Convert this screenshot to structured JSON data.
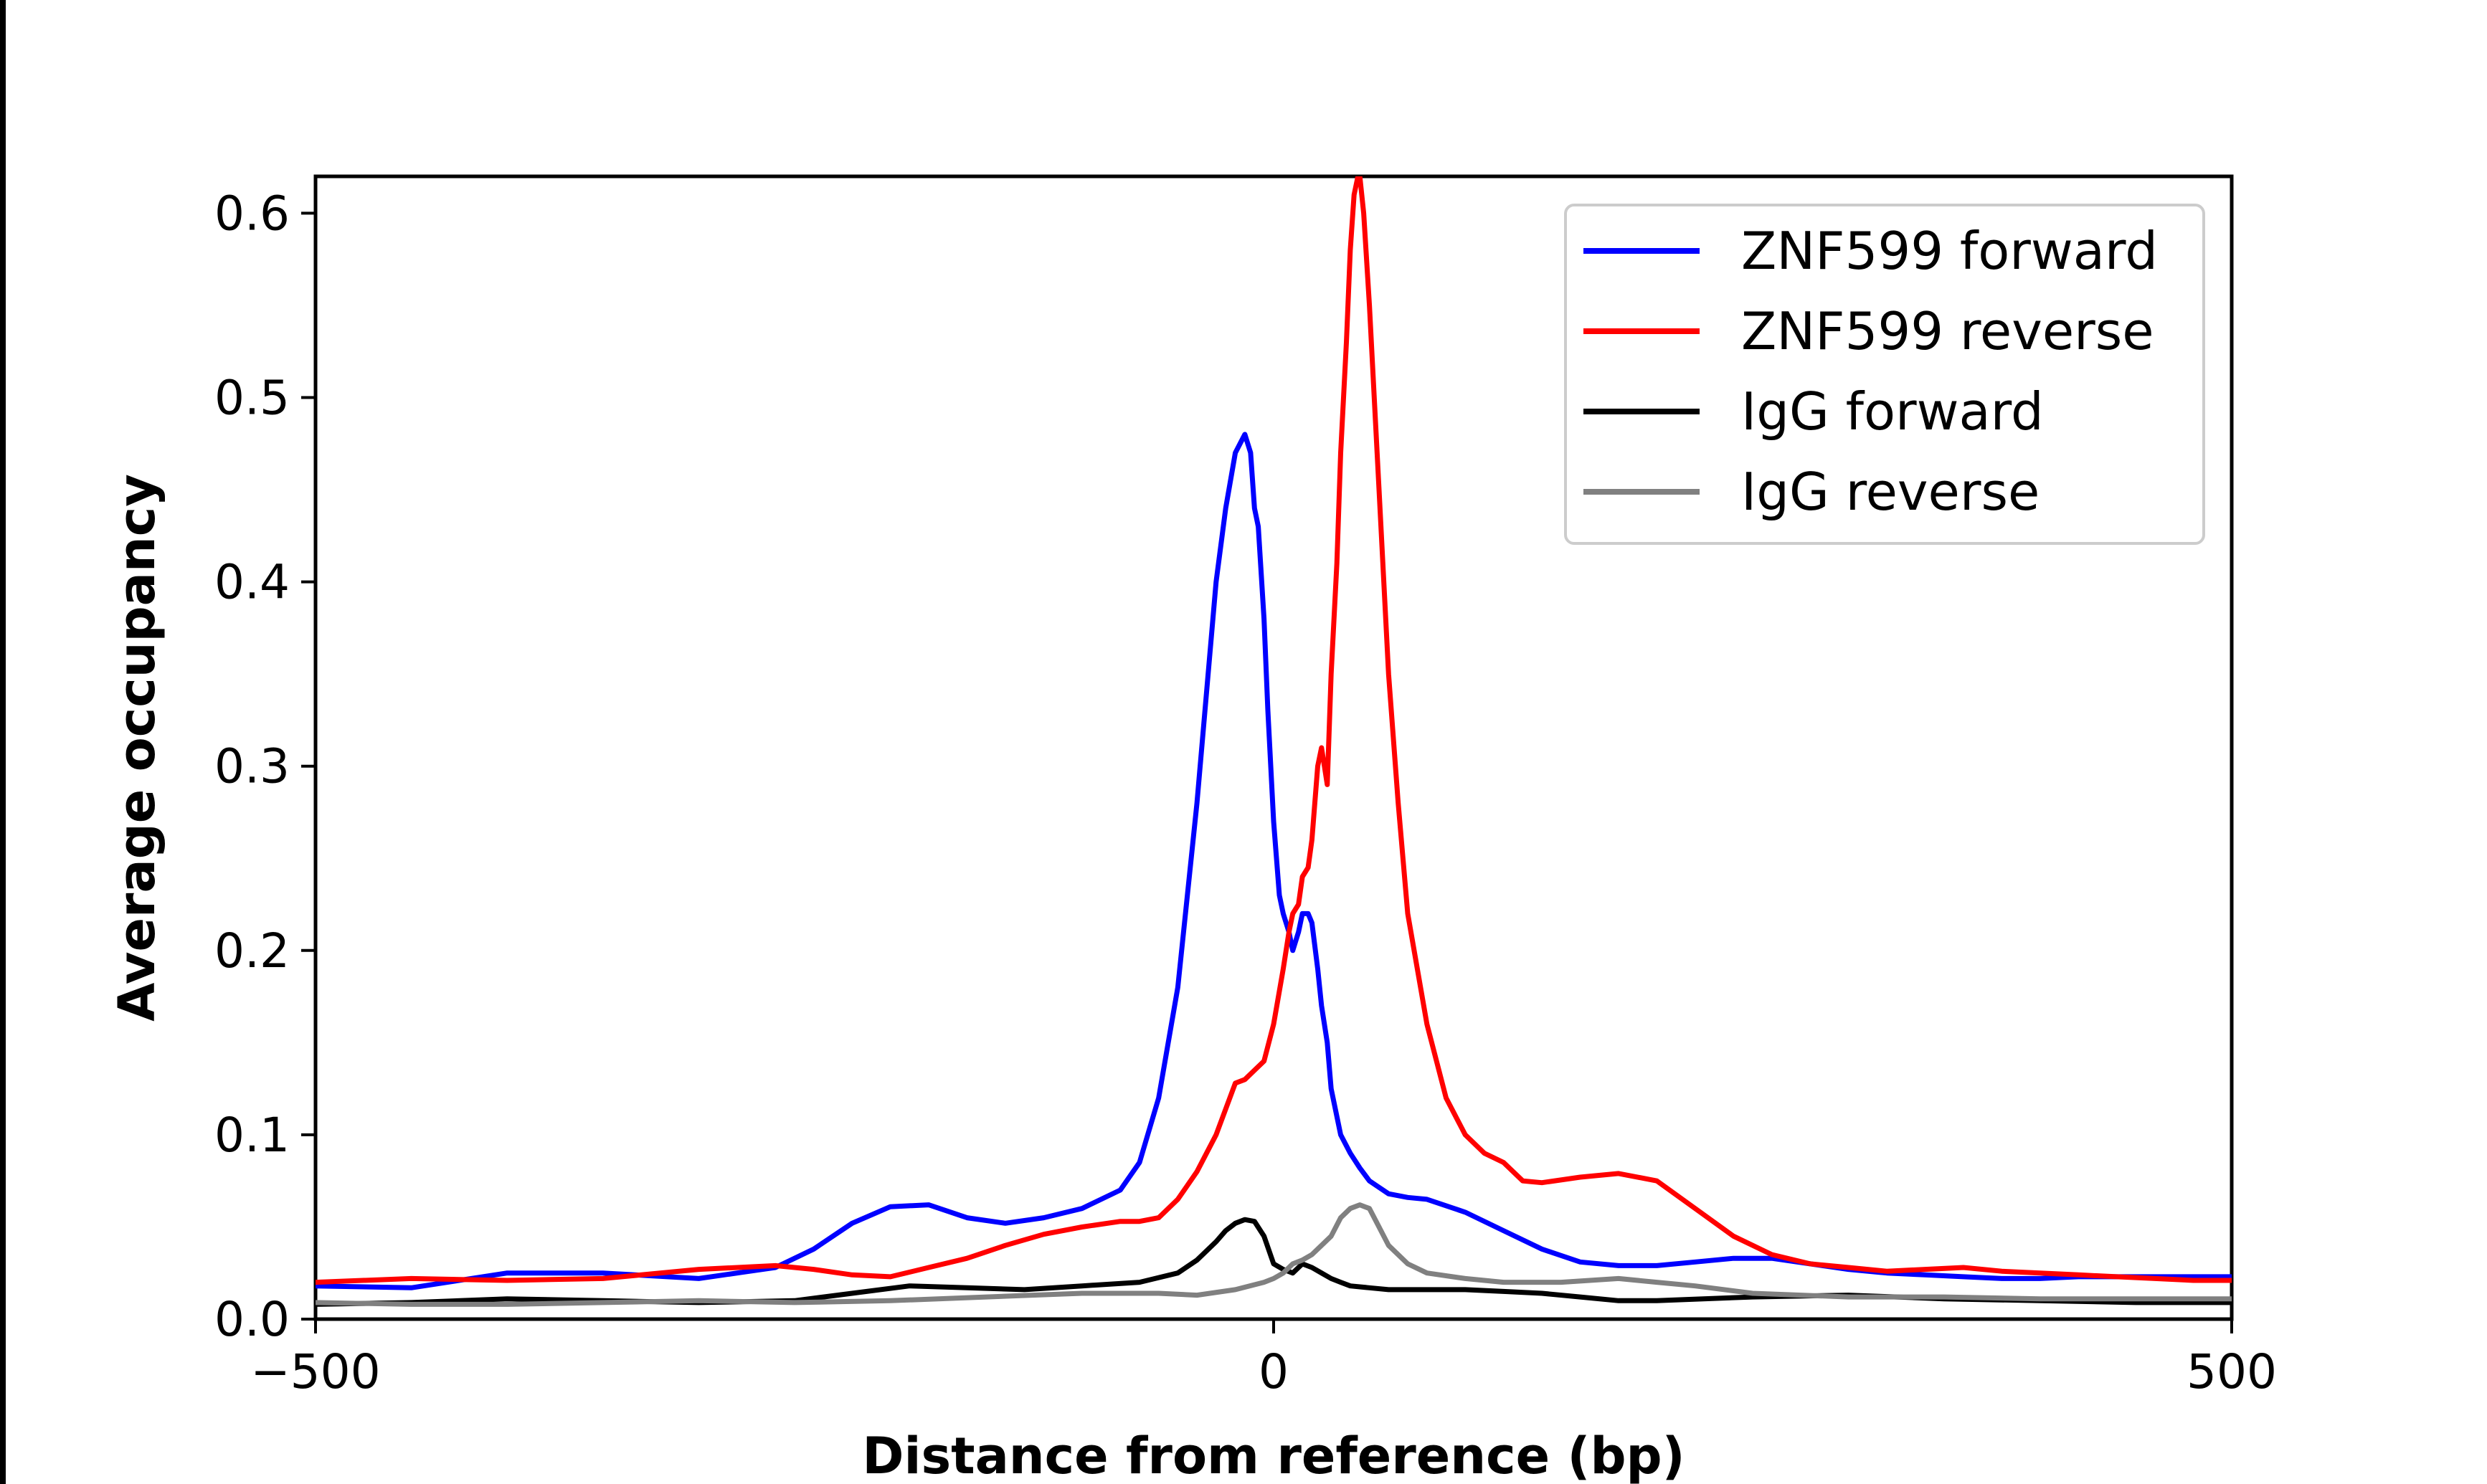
{
  "chart_data": {
    "type": "line",
    "title": "",
    "xlabel": "Distance from reference (bp)",
    "ylabel": "Average occupancy",
    "xlim": [
      -500,
      500
    ],
    "ylim": [
      0,
      0.62
    ],
    "x_ticks": [
      -500,
      0,
      500
    ],
    "x_tick_labels": [
      "−500",
      "0",
      "500"
    ],
    "y_ticks": [
      0.0,
      0.1,
      0.2,
      0.3,
      0.4,
      0.5,
      0.6
    ],
    "y_tick_labels": [
      "0.0",
      "0.1",
      "0.2",
      "0.3",
      "0.4",
      "0.5",
      "0.6"
    ],
    "grid": false,
    "legend_position": "top-right",
    "series": [
      {
        "name": "ZNF599 forward",
        "color": "#0000ff",
        "x": [
          -500,
          -450,
          -400,
          -350,
          -300,
          -260,
          -240,
          -220,
          -200,
          -180,
          -160,
          -140,
          -120,
          -100,
          -80,
          -70,
          -60,
          -50,
          -40,
          -30,
          -25,
          -20,
          -15,
          -12,
          -10,
          -8,
          -5,
          -3,
          0,
          3,
          5,
          8,
          10,
          13,
          15,
          18,
          20,
          23,
          25,
          28,
          30,
          35,
          40,
          45,
          50,
          60,
          70,
          80,
          100,
          120,
          140,
          160,
          180,
          200,
          220,
          240,
          260,
          280,
          300,
          320,
          340,
          360,
          380,
          400,
          420,
          440,
          460,
          480,
          500
        ],
        "y": [
          0.018,
          0.017,
          0.025,
          0.025,
          0.022,
          0.028,
          0.038,
          0.052,
          0.061,
          0.062,
          0.055,
          0.052,
          0.055,
          0.06,
          0.07,
          0.085,
          0.12,
          0.18,
          0.28,
          0.4,
          0.44,
          0.47,
          0.48,
          0.47,
          0.44,
          0.43,
          0.38,
          0.33,
          0.27,
          0.23,
          0.22,
          0.21,
          0.2,
          0.21,
          0.22,
          0.22,
          0.215,
          0.19,
          0.17,
          0.15,
          0.125,
          0.1,
          0.09,
          0.082,
          0.075,
          0.068,
          0.066,
          0.065,
          0.058,
          0.048,
          0.038,
          0.031,
          0.029,
          0.029,
          0.031,
          0.033,
          0.033,
          0.03,
          0.027,
          0.025,
          0.024,
          0.023,
          0.022,
          0.022,
          0.023,
          0.023,
          0.023,
          0.023,
          0.023
        ]
      },
      {
        "name": "ZNF599 reverse",
        "color": "#ff0000",
        "x": [
          -500,
          -450,
          -400,
          -350,
          -300,
          -260,
          -240,
          -220,
          -200,
          -180,
          -160,
          -140,
          -120,
          -100,
          -80,
          -70,
          -60,
          -50,
          -40,
          -30,
          -20,
          -15,
          -10,
          -5,
          0,
          5,
          8,
          10,
          13,
          15,
          18,
          20,
          23,
          25,
          28,
          30,
          33,
          35,
          38,
          40,
          42,
          44,
          45,
          47,
          50,
          55,
          60,
          65,
          70,
          75,
          80,
          90,
          100,
          110,
          120,
          130,
          140,
          160,
          180,
          200,
          220,
          240,
          260,
          280,
          300,
          320,
          340,
          360,
          380,
          400,
          420,
          440,
          460,
          480,
          500
        ],
        "y": [
          0.02,
          0.022,
          0.021,
          0.022,
          0.027,
          0.029,
          0.027,
          0.024,
          0.023,
          0.028,
          0.033,
          0.04,
          0.046,
          0.05,
          0.053,
          0.053,
          0.055,
          0.065,
          0.08,
          0.1,
          0.128,
          0.13,
          0.135,
          0.14,
          0.16,
          0.19,
          0.21,
          0.22,
          0.225,
          0.24,
          0.245,
          0.26,
          0.3,
          0.31,
          0.29,
          0.35,
          0.41,
          0.47,
          0.53,
          0.58,
          0.61,
          0.62,
          0.62,
          0.6,
          0.55,
          0.45,
          0.35,
          0.28,
          0.22,
          0.19,
          0.16,
          0.12,
          0.1,
          0.09,
          0.085,
          0.075,
          0.074,
          0.077,
          0.079,
          0.075,
          0.06,
          0.045,
          0.035,
          0.03,
          0.028,
          0.026,
          0.027,
          0.028,
          0.026,
          0.025,
          0.024,
          0.023,
          0.022,
          0.021,
          0.021
        ]
      },
      {
        "name": "IgG forward",
        "color": "#000000",
        "x": [
          -500,
          -450,
          -400,
          -350,
          -300,
          -250,
          -220,
          -190,
          -160,
          -130,
          -100,
          -70,
          -50,
          -40,
          -30,
          -25,
          -20,
          -15,
          -10,
          -5,
          0,
          5,
          10,
          15,
          20,
          25,
          30,
          35,
          40,
          50,
          60,
          80,
          100,
          120,
          140,
          160,
          180,
          200,
          250,
          300,
          350,
          400,
          450,
          500
        ],
        "y": [
          0.008,
          0.009,
          0.011,
          0.01,
          0.009,
          0.01,
          0.014,
          0.018,
          0.017,
          0.016,
          0.018,
          0.02,
          0.025,
          0.032,
          0.042,
          0.048,
          0.052,
          0.054,
          0.053,
          0.045,
          0.03,
          0.027,
          0.025,
          0.03,
          0.028,
          0.025,
          0.022,
          0.02,
          0.018,
          0.017,
          0.016,
          0.016,
          0.016,
          0.015,
          0.014,
          0.012,
          0.01,
          0.01,
          0.012,
          0.013,
          0.011,
          0.01,
          0.009,
          0.009
        ]
      },
      {
        "name": "IgG reverse",
        "color": "#808080",
        "x": [
          -500,
          -450,
          -400,
          -350,
          -300,
          -250,
          -200,
          -150,
          -100,
          -60,
          -40,
          -20,
          -5,
          0,
          5,
          10,
          15,
          20,
          25,
          30,
          35,
          40,
          45,
          50,
          55,
          60,
          70,
          80,
          100,
          120,
          150,
          180,
          200,
          220,
          250,
          300,
          350,
          400,
          450,
          500
        ],
        "y": [
          0.009,
          0.008,
          0.008,
          0.009,
          0.01,
          0.009,
          0.01,
          0.012,
          0.014,
          0.014,
          0.013,
          0.016,
          0.02,
          0.022,
          0.025,
          0.03,
          0.032,
          0.035,
          0.04,
          0.045,
          0.055,
          0.06,
          0.062,
          0.06,
          0.05,
          0.04,
          0.03,
          0.025,
          0.022,
          0.02,
          0.02,
          0.022,
          0.02,
          0.018,
          0.014,
          0.012,
          0.012,
          0.011,
          0.011,
          0.011
        ]
      }
    ]
  }
}
